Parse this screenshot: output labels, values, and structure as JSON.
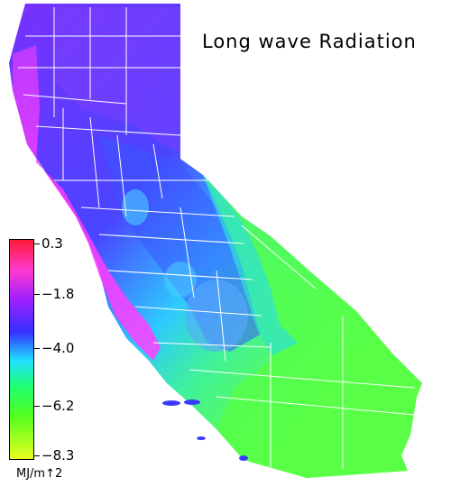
{
  "title": "Long wave Radiation",
  "legend": {
    "unit": "MJ/m↑2",
    "ticks": [
      "0.3",
      "−1.8",
      "−4.0",
      "−6.2",
      "−8.3"
    ],
    "colors": [
      "#ff1a3a",
      "#ff30ff",
      "#6a1aff",
      "#2a3aff",
      "#24d0ff",
      "#20ff7a",
      "#6aff20",
      "#ddff20"
    ]
  },
  "map": {
    "region": "California",
    "color_north": "#6a3cff",
    "color_coast": "#ff33ff",
    "color_central": "#3a56ff",
    "color_east": "#4fe28e",
    "color_south": "#62ff45",
    "border_color": "#ffffff"
  }
}
